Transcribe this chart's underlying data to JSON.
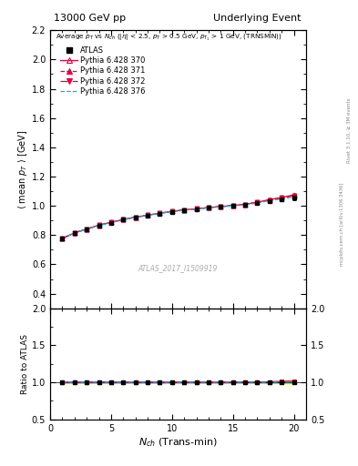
{
  "title_left": "13000 GeV pp",
  "title_right": "Underlying Event",
  "watermark": "ATLAS_2017_I1509919",
  "ylabel_main": "$\\langle$ mean $p_T$ $\\rangle$ [GeV]",
  "ylabel_ratio": "Ratio to ATLAS",
  "xlabel": "$N_{ch}$ (Trans-min)",
  "ylim_main": [
    0.3,
    2.2
  ],
  "ylim_ratio": [
    0.5,
    2.0
  ],
  "right_label_top": "Rivet 3.1.10, ≥ 3M events",
  "right_label_bot": "mcplots.cern.ch [arXiv:1306.3436]",
  "atlas_x": [
    1,
    2,
    3,
    4,
    5,
    6,
    7,
    8,
    9,
    10,
    11,
    12,
    13,
    14,
    15,
    16,
    17,
    18,
    19,
    20
  ],
  "atlas_y": [
    0.775,
    0.815,
    0.84,
    0.865,
    0.885,
    0.905,
    0.92,
    0.935,
    0.948,
    0.96,
    0.97,
    0.978,
    0.986,
    0.992,
    0.998,
    1.005,
    1.02,
    1.035,
    1.045,
    1.055
  ],
  "atlas_yerr": [
    0.008,
    0.008,
    0.008,
    0.008,
    0.008,
    0.008,
    0.008,
    0.008,
    0.008,
    0.008,
    0.008,
    0.008,
    0.008,
    0.008,
    0.008,
    0.008,
    0.008,
    0.008,
    0.012,
    0.015
  ],
  "py370_y": [
    0.775,
    0.815,
    0.84,
    0.868,
    0.888,
    0.906,
    0.922,
    0.937,
    0.95,
    0.963,
    0.972,
    0.98,
    0.988,
    0.995,
    1.002,
    1.01,
    1.025,
    1.042,
    1.058,
    1.075
  ],
  "py371_y": [
    0.776,
    0.816,
    0.841,
    0.867,
    0.887,
    0.907,
    0.923,
    0.936,
    0.949,
    0.962,
    0.971,
    0.98,
    0.988,
    0.996,
    1.002,
    1.01,
    1.025,
    1.04,
    1.055,
    1.07
  ],
  "py372_y": [
    0.778,
    0.817,
    0.842,
    0.868,
    0.888,
    0.907,
    0.922,
    0.937,
    0.95,
    0.963,
    0.972,
    0.98,
    0.988,
    0.995,
    1.002,
    1.01,
    1.024,
    1.04,
    1.055,
    1.07
  ],
  "py376_y": [
    0.776,
    0.815,
    0.84,
    0.865,
    0.885,
    0.905,
    0.921,
    0.935,
    0.948,
    0.96,
    0.97,
    0.978,
    0.986,
    0.993,
    1.0,
    1.007,
    1.02,
    1.035,
    1.048,
    1.06
  ],
  "color_py370": "#e8003c",
  "color_py371": "#e8003c",
  "color_py372": "#e8003c",
  "color_py376": "#00bcd4",
  "color_atlas": "#000000",
  "band_yellow": "#ffff00",
  "band_green": "#00cc00"
}
